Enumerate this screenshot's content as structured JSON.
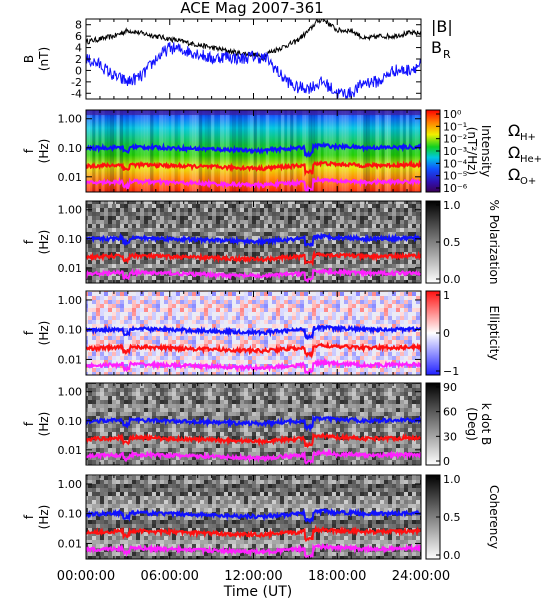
{
  "chart_data": {
    "type": "heatmap",
    "title": "ACE Mag 2007-361",
    "xlabel": "Time (UT)",
    "x_ticks": [
      "00:00:00",
      "06:00:00",
      "12:00:00",
      "18:00:00",
      "24:00:00"
    ],
    "x_range_hours": [
      0,
      24
    ],
    "frequency_lines": [
      {
        "name": "Ω_H+",
        "color": "#1010ff",
        "base": 0.09
      },
      {
        "name": "Ω_He+",
        "color": "#ff1010",
        "base": 0.022
      },
      {
        "name": "Ω_O+",
        "color": "#ff20ff",
        "base": 0.0058
      }
    ],
    "panels": [
      {
        "id": "b-panel",
        "kind": "line",
        "ylabel_line1": "B",
        "ylabel_line2": "(nT)",
        "y_ticks": [
          "8",
          "6",
          "4",
          "2",
          "0",
          "-2",
          "-4"
        ],
        "ylim": [
          -5,
          9
        ],
        "series": [
          {
            "name": "|B|",
            "color": "#000000",
            "x": [
              0,
              1,
              2,
              3,
              4,
              5,
              6,
              7,
              8,
              9,
              10,
              11,
              12,
              12.7,
              13,
              14,
              15,
              16,
              16.5,
              17,
              18,
              19,
              20,
              21,
              22,
              23,
              24
            ],
            "y": [
              5,
              5.5,
              6,
              7,
              6.5,
              6,
              5.5,
              5,
              4.5,
              4,
              3.5,
              3,
              2.8,
              2.2,
              3,
              4,
              5,
              7,
              8.5,
              9,
              7,
              7,
              5.5,
              6,
              6,
              6.5,
              6.5
            ]
          },
          {
            "name": "B_R",
            "color": "#1010ff",
            "x": [
              0,
              1,
              2,
              3,
              4,
              5,
              6,
              7,
              8,
              9,
              10,
              11,
              12,
              13,
              14,
              15,
              16,
              17,
              18,
              19,
              20,
              21,
              22,
              23,
              24
            ],
            "y": [
              2,
              1,
              -1,
              -2,
              -1,
              2,
              4,
              3.5,
              3,
              2,
              2.5,
              2,
              2.5,
              2,
              -1,
              -3,
              -3,
              -2,
              -4,
              -4,
              -2,
              -2,
              0,
              0,
              1
            ]
          }
        ],
        "legend": [
          {
            "label": "|B|",
            "sub": "",
            "color": "#000000"
          },
          {
            "label": "B",
            "sub": "R",
            "color": "#1010ff"
          }
        ]
      },
      {
        "id": "intensity-panel",
        "kind": "spectrogram",
        "palette": "rainbow",
        "ylabel_line1": "f",
        "ylabel_line2": "(Hz)",
        "y_ticks": [
          "1.00",
          "0.10",
          "0.01"
        ],
        "cbar_label_line1": "Intensity",
        "cbar_label_line2": "(nT²/Hz)",
        "cbar_ticks": [
          "10⁰",
          "10⁻¹",
          "10⁻²",
          "10⁻³",
          "10⁻⁴",
          "10⁻⁵",
          "10⁻⁶"
        ],
        "legend": [
          {
            "label": "Ω",
            "sub": "H+",
            "color": "#1010ff"
          },
          {
            "label": "Ω",
            "sub": "He+",
            "color": "#ff1010"
          },
          {
            "label": "Ω",
            "sub": "O+",
            "color": "#ff20ff"
          }
        ]
      },
      {
        "id": "polarization-panel",
        "kind": "spectrogram",
        "palette": "gray",
        "ylabel_line1": "f",
        "ylabel_line2": "(Hz)",
        "y_ticks": [
          "1.00",
          "0.10",
          "0.01"
        ],
        "cbar_label_line1": "% Polarization",
        "cbar_label_line2": "",
        "cbar_ticks": [
          "1.0",
          "0.5",
          "0.0"
        ]
      },
      {
        "id": "ellipticity-panel",
        "kind": "spectrogram",
        "palette": "bwr",
        "ylabel_line1": "f",
        "ylabel_line2": "(Hz)",
        "y_ticks": [
          "1.00",
          "0.10",
          "0.01"
        ],
        "cbar_label_line1": "Ellipticity",
        "cbar_label_line2": "",
        "cbar_ticks": [
          "1",
          "0",
          "−1"
        ]
      },
      {
        "id": "kdotb-panel",
        "kind": "spectrogram",
        "palette": "gray",
        "ylabel_line1": "f",
        "ylabel_line2": "(Hz)",
        "y_ticks": [
          "1.00",
          "0.10",
          "0.01"
        ],
        "cbar_label_line1": "k dot B",
        "cbar_label_line2": "(Deg)",
        "cbar_ticks": [
          "90",
          "60",
          "30",
          "0"
        ]
      },
      {
        "id": "coherency-panel",
        "kind": "spectrogram",
        "palette": "gray",
        "ylabel_line1": "f",
        "ylabel_line2": "(Hz)",
        "y_ticks": [
          "1.00",
          "0.10",
          "0.01"
        ],
        "cbar_label_line1": "Coherency",
        "cbar_label_line2": "",
        "cbar_ticks": [
          "1.0",
          "0.5",
          "0.0"
        ]
      }
    ]
  }
}
